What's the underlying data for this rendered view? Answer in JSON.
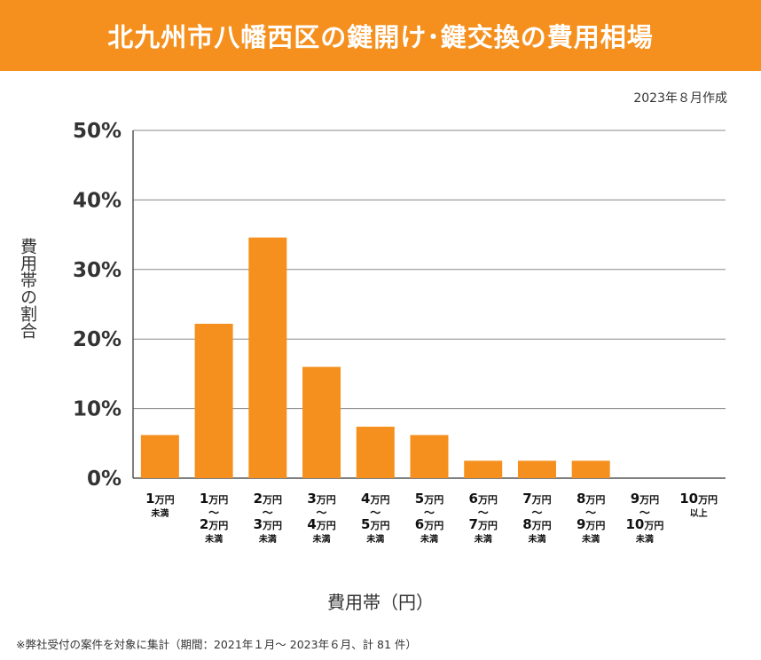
{
  "header": {
    "title": "北九州市八幡西区の鍵開け･鍵交換の費用相場"
  },
  "note_created": "2023年８月作成",
  "footnote": "※弊社受付の案件を対象に集計（期間：2021年１月～ 2023年６月、計 81 件）",
  "colors": {
    "header": "#f5901e",
    "bar": "#f5901e",
    "grid": "#888888"
  },
  "chart_data": {
    "type": "bar",
    "title": "北九州市八幡西区の鍵開け･鍵交換の費用相場",
    "xlabel": "費用帯（円）",
    "ylabel": "費用帯の割合",
    "ylim": [
      0,
      50
    ],
    "yticks": [
      "0%",
      "10%",
      "20%",
      "30%",
      "40%",
      "50%"
    ],
    "grid": true,
    "categories": [
      "1万円未満",
      "1万円～2万円未満",
      "2万円～3万円未満",
      "3万円～4万円未満",
      "4万円～5万円未満",
      "5万円～6万円未満",
      "6万円～7万円未満",
      "7万円～8万円未満",
      "8万円～9万円未満",
      "9万円～10万円未満",
      "10万円以上"
    ],
    "category_labels": [
      {
        "lines": [
          [
            "1",
            "万円"
          ],
          [
            "未満"
          ]
        ]
      },
      {
        "lines": [
          [
            "1",
            "万円"
          ],
          [
            "～"
          ],
          [
            "2",
            "万円"
          ],
          [
            "未満"
          ]
        ]
      },
      {
        "lines": [
          [
            "2",
            "万円"
          ],
          [
            "～"
          ],
          [
            "3",
            "万円"
          ],
          [
            "未満"
          ]
        ]
      },
      {
        "lines": [
          [
            "3",
            "万円"
          ],
          [
            "～"
          ],
          [
            "4",
            "万円"
          ],
          [
            "未満"
          ]
        ]
      },
      {
        "lines": [
          [
            "4",
            "万円"
          ],
          [
            "～"
          ],
          [
            "5",
            "万円"
          ],
          [
            "未満"
          ]
        ]
      },
      {
        "lines": [
          [
            "5",
            "万円"
          ],
          [
            "～"
          ],
          [
            "6",
            "万円"
          ],
          [
            "未満"
          ]
        ]
      },
      {
        "lines": [
          [
            "6",
            "万円"
          ],
          [
            "～"
          ],
          [
            "7",
            "万円"
          ],
          [
            "未満"
          ]
        ]
      },
      {
        "lines": [
          [
            "7",
            "万円"
          ],
          [
            "～"
          ],
          [
            "8",
            "万円"
          ],
          [
            "未満"
          ]
        ]
      },
      {
        "lines": [
          [
            "8",
            "万円"
          ],
          [
            "～"
          ],
          [
            "9",
            "万円"
          ],
          [
            "未満"
          ]
        ]
      },
      {
        "lines": [
          [
            "9",
            "万円"
          ],
          [
            "～"
          ],
          [
            "10",
            "万円"
          ],
          [
            "未満"
          ]
        ]
      },
      {
        "lines": [
          [
            "10",
            "万円"
          ],
          [
            "以上"
          ]
        ]
      }
    ],
    "values": [
      6.2,
      22.2,
      34.6,
      16.0,
      7.4,
      6.2,
      2.5,
      2.5,
      2.5,
      0,
      0
    ]
  }
}
